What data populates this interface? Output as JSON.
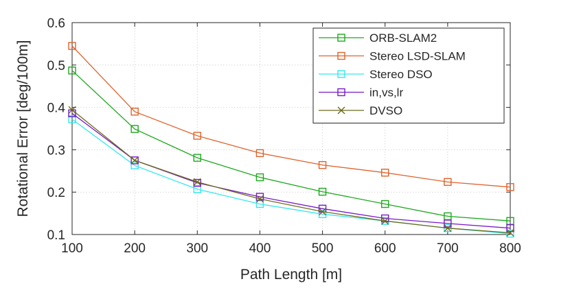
{
  "chart_data": {
    "type": "line",
    "title": "",
    "xlabel": "Path Length [m]",
    "ylabel": "Rotational Error [deg/100m]",
    "xlim": [
      100,
      800
    ],
    "ylim": [
      0.1,
      0.6
    ],
    "xticks": [
      100,
      200,
      300,
      400,
      500,
      600,
      700,
      800
    ],
    "yticks": [
      0.1,
      0.2,
      0.3,
      0.4,
      0.5,
      0.6
    ],
    "xtick_labels": [
      "100",
      "200",
      "300",
      "400",
      "500",
      "600",
      "700",
      "800"
    ],
    "ytick_labels": [
      "0.1",
      "0.2",
      "0.3",
      "0.4",
      "0.5",
      "0.6"
    ],
    "grid": true,
    "legend_position": "top-right",
    "x": [
      100,
      200,
      300,
      400,
      500,
      600,
      700,
      800
    ],
    "series": [
      {
        "name": "ORB-SLAM2",
        "color": "#1ca81c",
        "marker": "square",
        "values": [
          0.487,
          0.349,
          0.281,
          0.235,
          0.201,
          0.172,
          0.143,
          0.132
        ]
      },
      {
        "name": "Stereo LSD-SLAM",
        "color": "#e0622a",
        "marker": "square",
        "values": [
          0.545,
          0.39,
          0.333,
          0.292,
          0.264,
          0.246,
          0.224,
          0.212
        ]
      },
      {
        "name": "Stereo DSO",
        "color": "#33e8f0",
        "marker": "square",
        "values": [
          0.372,
          0.263,
          0.207,
          0.172,
          0.148,
          0.132,
          0.115,
          0.102
        ]
      },
      {
        "name": "in,vs,lr",
        "color": "#7a17c9",
        "marker": "square",
        "values": [
          0.386,
          0.275,
          0.222,
          0.189,
          0.161,
          0.138,
          0.126,
          0.115
        ]
      },
      {
        "name": "DVSO",
        "color": "#6b6b1a",
        "marker": "x",
        "values": [
          0.394,
          0.275,
          0.224,
          0.184,
          0.154,
          0.132,
          0.115,
          0.104
        ]
      }
    ]
  }
}
